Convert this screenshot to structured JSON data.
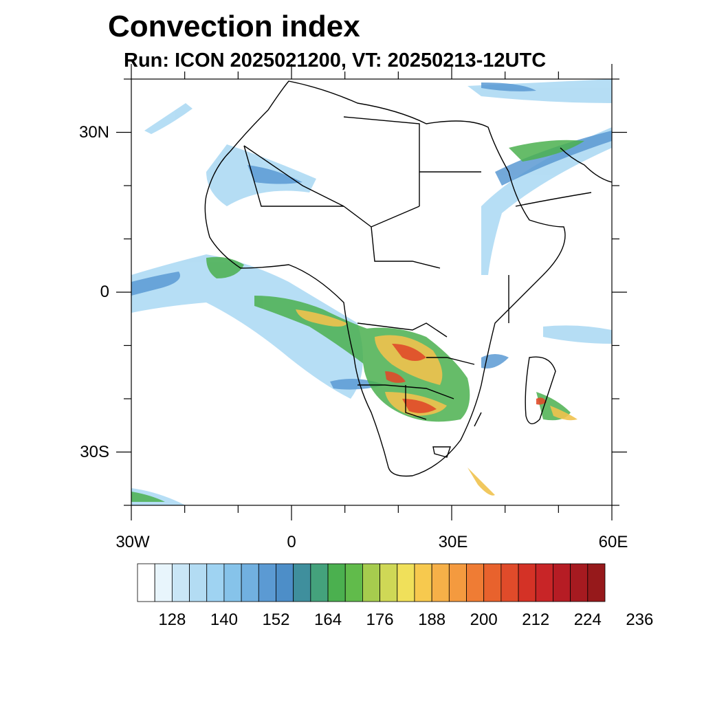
{
  "title": "Convection index",
  "subtitle": "Run: ICON 2025021200,  VT: 20250213-12UTC",
  "axes": {
    "lat_labels": [
      {
        "text": "30N",
        "lat": 30
      },
      {
        "text": "0",
        "lat": 0
      },
      {
        "text": "30S",
        "lat": -30
      }
    ],
    "lon_labels": [
      {
        "text": "30W",
        "lon": -30
      },
      {
        "text": "0",
        "lon": 0
      },
      {
        "text": "30E",
        "lon": 30
      },
      {
        "text": "60E",
        "lon": 60
      }
    ],
    "lon_range": [
      -30,
      60
    ],
    "lat_range": [
      -40,
      40
    ]
  },
  "colorbar": {
    "colors": [
      "#ffffff",
      "#e8f5fc",
      "#c9e6f6",
      "#b3dcf3",
      "#9fd3f2",
      "#86c3ea",
      "#71b0e0",
      "#5b9ad3",
      "#4d8ec8",
      "#3f8f9d",
      "#44a27c",
      "#4bb04f",
      "#61bb4b",
      "#a6cc4e",
      "#cfd856",
      "#f0e05a",
      "#f7c94e",
      "#f6b048",
      "#f49a3f",
      "#ef7c34",
      "#e8622d",
      "#e04b2a",
      "#d43226",
      "#c82527",
      "#b61c24",
      "#a61a20",
      "#96191b"
    ],
    "labels": [
      "128",
      "140",
      "152",
      "164",
      "176",
      "188",
      "200",
      "212",
      "224",
      "236"
    ]
  }
}
